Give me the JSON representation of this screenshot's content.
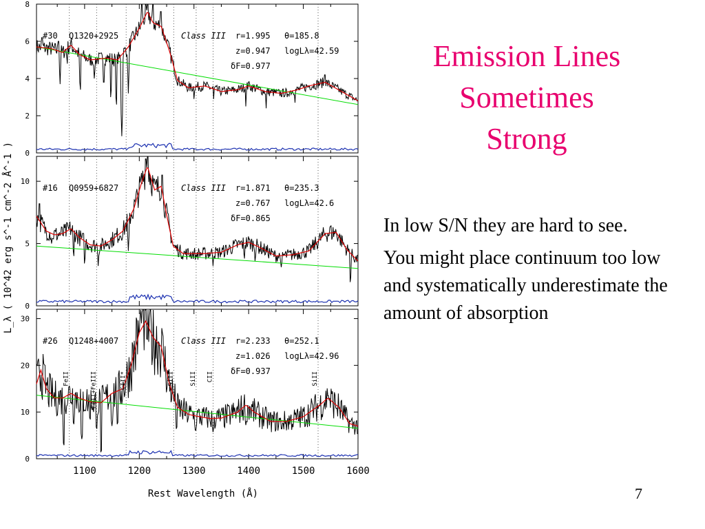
{
  "slide": {
    "title_lines": [
      "Emission Lines",
      "Sometimes",
      "Strong"
    ],
    "paragraphs": [
      "In low S/N they are hard to see.",
      "You might place continuum too low and systematically underestimate the amount of absorption"
    ],
    "page_number": "7"
  },
  "colors": {
    "title": "#e8006e",
    "spectrum": "#000000",
    "fit": "#dd0000",
    "continuum": "#00dd00",
    "error": "#1a2fb0"
  },
  "chart_data": {
    "type": "line",
    "xlabel": "Rest Wavelength (Å)",
    "ylabel": "L_λ ( 10^42 erg s^-1 cm^-2 Å^-1 )",
    "xlim": [
      1012,
      1600
    ],
    "x_ticks": [
      1100,
      1200,
      1300,
      1400,
      1500,
      1600
    ],
    "grid": false,
    "line_markers": [
      1072,
      1122,
      1176,
      1263,
      1304,
      1335,
      1527
    ],
    "line_labels": [
      {
        "text": "FeII",
        "x": 1072
      },
      {
        "text": "FeII+FeIII",
        "x": 1122
      },
      {
        "text": "CIII*",
        "x": 1176
      },
      {
        "text": "SiII",
        "x": 1263
      },
      {
        "text": "SiII",
        "x": 1304
      },
      {
        "text": "CII",
        "x": 1335
      },
      {
        "text": "SiII",
        "x": 1527
      }
    ],
    "panels": [
      {
        "id": "#30",
        "name": "Q1320+2925",
        "class_label": "Class III",
        "r": "r=1.995",
        "theta": "θ=185.8",
        "z": "z=0.947",
        "logL": "logLλ=42.59",
        "dF": "δF=0.977",
        "ylim": [
          0,
          8
        ],
        "yticks": [
          0,
          2,
          4,
          6,
          8
        ],
        "continuum": [
          [
            1012,
            5.7
          ],
          [
            1600,
            2.6
          ]
        ],
        "fit": [
          [
            1012,
            5.7
          ],
          [
            1040,
            5.6
          ],
          [
            1060,
            5.4
          ],
          [
            1075,
            5.8
          ],
          [
            1090,
            5.3
          ],
          [
            1110,
            5.0
          ],
          [
            1140,
            5.1
          ],
          [
            1160,
            5.0
          ],
          [
            1180,
            5.7
          ],
          [
            1200,
            6.7
          ],
          [
            1215,
            7.6
          ],
          [
            1225,
            7.0
          ],
          [
            1240,
            6.8
          ],
          [
            1255,
            5.5
          ],
          [
            1270,
            3.9
          ],
          [
            1290,
            3.5
          ],
          [
            1320,
            3.6
          ],
          [
            1350,
            3.3
          ],
          [
            1380,
            3.4
          ],
          [
            1400,
            3.6
          ],
          [
            1430,
            3.3
          ],
          [
            1460,
            3.2
          ],
          [
            1490,
            3.4
          ],
          [
            1510,
            3.6
          ],
          [
            1540,
            3.8
          ],
          [
            1570,
            3.3
          ],
          [
            1600,
            2.8
          ]
        ],
        "dips": [
          [
            1055,
            3.5
          ],
          [
            1068,
            4.4
          ],
          [
            1092,
            3.0
          ],
          [
            1118,
            3.6
          ],
          [
            1135,
            3.2
          ],
          [
            1148,
            2.6
          ],
          [
            1158,
            2.2
          ],
          [
            1168,
            0.9
          ],
          [
            1180,
            3.2
          ],
          [
            1300,
            2.9
          ],
          [
            1336,
            2.9
          ],
          [
            1395,
            2.3
          ],
          [
            1432,
            2.4
          ],
          [
            1470,
            2.6
          ],
          [
            1485,
            2.5
          ]
        ],
        "spikes": [
          [
            1022,
            6.2
          ],
          [
            1052,
            6.0
          ],
          [
            1205,
            8.0
          ],
          [
            1212,
            8.5
          ],
          [
            1225,
            8.0
          ],
          [
            1240,
            7.6
          ],
          [
            1250,
            5.9
          ],
          [
            1400,
            3.8
          ],
          [
            1540,
            4.2
          ]
        ],
        "noise_amp": 0.15,
        "error_level": 0.2
      },
      {
        "id": "#16",
        "name": "Q0959+6827",
        "class_label": "Class III",
        "r": "r=1.871",
        "theta": "θ=235.3",
        "z": "z=0.767",
        "logL": "logLλ=42.6",
        "dF": "δF=0.865",
        "ylim": [
          0,
          12
        ],
        "yticks": [
          0,
          5,
          10
        ],
        "continuum": [
          [
            1012,
            4.8
          ],
          [
            1600,
            3.0
          ]
        ],
        "fit": [
          [
            1012,
            7.2
          ],
          [
            1030,
            6.0
          ],
          [
            1045,
            5.7
          ],
          [
            1060,
            5.8
          ],
          [
            1075,
            6.2
          ],
          [
            1090,
            5.5
          ],
          [
            1110,
            4.9
          ],
          [
            1130,
            4.8
          ],
          [
            1150,
            5.3
          ],
          [
            1170,
            6.0
          ],
          [
            1190,
            7.8
          ],
          [
            1205,
            10.0
          ],
          [
            1215,
            11.2
          ],
          [
            1228,
            9.3
          ],
          [
            1240,
            9.6
          ],
          [
            1250,
            7.3
          ],
          [
            1262,
            4.8
          ],
          [
            1280,
            4.2
          ],
          [
            1320,
            4.2
          ],
          [
            1350,
            4.3
          ],
          [
            1380,
            4.9
          ],
          [
            1400,
            5.1
          ],
          [
            1420,
            4.7
          ],
          [
            1450,
            4.0
          ],
          [
            1480,
            4.1
          ],
          [
            1510,
            4.4
          ],
          [
            1540,
            5.8
          ],
          [
            1560,
            5.9
          ],
          [
            1580,
            4.5
          ],
          [
            1600,
            3.6
          ]
        ],
        "dips": [
          [
            1040,
            4.6
          ],
          [
            1080,
            3.6
          ],
          [
            1100,
            3.0
          ],
          [
            1125,
            3.0
          ],
          [
            1180,
            4.4
          ],
          [
            1303,
            3.5
          ],
          [
            1335,
            3.0
          ],
          [
            1392,
            3.4
          ],
          [
            1412,
            3.2
          ],
          [
            1460,
            2.7
          ],
          [
            1586,
            1.5
          ]
        ],
        "spikes": [
          [
            1018,
            8.2
          ],
          [
            1195,
            9.0
          ],
          [
            1212,
            11.8
          ],
          [
            1216,
            12.0
          ],
          [
            1242,
            10.5
          ],
          [
            1550,
            6.4
          ]
        ],
        "noise_amp": 0.25,
        "error_level": 0.35
      },
      {
        "id": "#26",
        "name": "Q1248+4007",
        "class_label": "Class III",
        "r": "r=2.233",
        "theta": "θ=252.1",
        "z": "z=1.026",
        "logL": "logLλ=42.96",
        "dF": "δF=0.937",
        "ylim": [
          0,
          32
        ],
        "yticks": [
          0,
          10,
          20,
          30
        ],
        "continuum": [
          [
            1012,
            13.6
          ],
          [
            1600,
            6.5
          ]
        ],
        "fit": [
          [
            1012,
            16.0
          ],
          [
            1020,
            19.0
          ],
          [
            1030,
            15.0
          ],
          [
            1045,
            13.0
          ],
          [
            1060,
            13.0
          ],
          [
            1075,
            14.0
          ],
          [
            1090,
            13.0
          ],
          [
            1110,
            12.2
          ],
          [
            1130,
            12.0
          ],
          [
            1150,
            14.0
          ],
          [
            1170,
            15.0
          ],
          [
            1185,
            20.0
          ],
          [
            1200,
            27.0
          ],
          [
            1212,
            29.5
          ],
          [
            1225,
            26.0
          ],
          [
            1240,
            24.0
          ],
          [
            1255,
            16.0
          ],
          [
            1270,
            11.0
          ],
          [
            1290,
            9.5
          ],
          [
            1310,
            9.0
          ],
          [
            1330,
            8.6
          ],
          [
            1350,
            8.7
          ],
          [
            1380,
            10.0
          ],
          [
            1395,
            11.5
          ],
          [
            1410,
            10.0
          ],
          [
            1440,
            8.0
          ],
          [
            1470,
            8.0
          ],
          [
            1500,
            9.0
          ],
          [
            1530,
            11.5
          ],
          [
            1545,
            13.0
          ],
          [
            1565,
            11.0
          ],
          [
            1585,
            7.5
          ],
          [
            1600,
            7.0
          ]
        ],
        "dips": [
          [
            1050,
            9.0
          ],
          [
            1062,
            2.5
          ],
          [
            1080,
            7.0
          ],
          [
            1095,
            4.0
          ],
          [
            1110,
            8.0
          ],
          [
            1122,
            6.0
          ],
          [
            1130,
            1.0
          ],
          [
            1150,
            7.0
          ],
          [
            1160,
            7.0
          ],
          [
            1268,
            6.0
          ],
          [
            1303,
            5.5
          ],
          [
            1335,
            5.5
          ],
          [
            1395,
            7.0
          ],
          [
            1460,
            6.0
          ]
        ],
        "spikes": [
          [
            1016,
            19.8
          ],
          [
            1205,
            29.0
          ],
          [
            1212,
            30.5
          ],
          [
            1222,
            28.5
          ],
          [
            1545,
            13.5
          ]
        ],
        "noise_amp": 0.6,
        "error_level": 0.7
      }
    ]
  }
}
